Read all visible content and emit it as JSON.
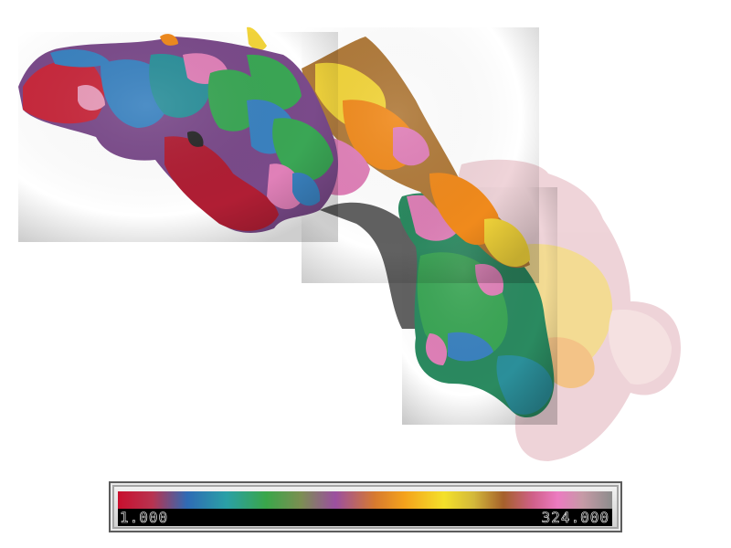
{
  "colorbar": {
    "min_label": "1.000",
    "max_label": "324.000",
    "colors": [
      "#c8102e",
      "#2f6bb5",
      "#3aa64a",
      "#9b4fa0",
      "#f4a21c",
      "#f4e12a",
      "#a5602b",
      "#ec7bc1",
      "#8c8c8c"
    ]
  },
  "surface": {
    "palette": {
      "red": "#c8283c",
      "crimson": "#b01e34",
      "pink": "#e080b8",
      "blue": "#3a82c0",
      "teal": "#2b8f9a",
      "green": "#3aa655",
      "darkgreen": "#2a8a60",
      "purple": "#7a4a8a",
      "orange": "#f08a1c",
      "yellow": "#f2d43a",
      "brown": "#b07a3a",
      "paleyellow": "#f0d070",
      "palepink": "#e8c4cc",
      "shadow": "#404040"
    }
  }
}
